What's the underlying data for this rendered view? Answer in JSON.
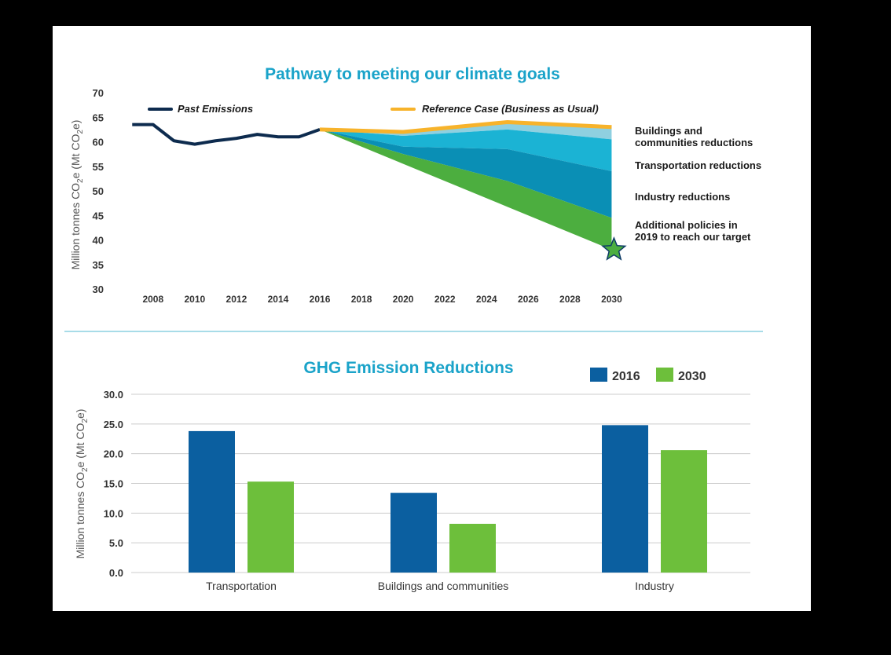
{
  "colors": {
    "title": "#1aa3c9",
    "past": "#0d2b4e",
    "reference": "#f7b32b",
    "buildings": "#8fd0e0",
    "transportation": "#1bb3d4",
    "industry": "#0a8fb5",
    "additional": "#4cae3f",
    "bar2016": "#0b5fa0",
    "bar2030": "#6dbf3b",
    "divider": "#a8dce8",
    "grid": "#cccccc",
    "star": "#4cae3f",
    "starStroke": "#0d3b66"
  },
  "chart_data": [
    {
      "type": "area",
      "title": "Pathway to meeting our climate goals",
      "ylabel_parts": [
        "Million tonnes CO",
        "2",
        "e (Mt CO",
        "2",
        "e)"
      ],
      "ylim": [
        30,
        70
      ],
      "yticks": [
        "70",
        "65",
        "60",
        "55",
        "50",
        "45",
        "40",
        "35",
        "30"
      ],
      "xlim": [
        2006.5,
        2030.7
      ],
      "xticks": [
        "2008",
        "2010",
        "2012",
        "2014",
        "2016",
        "2018",
        "2020",
        "2022",
        "2024",
        "2026",
        "2028",
        "2030"
      ],
      "legend": {
        "past": "Past Emissions",
        "reference": "Reference Case (Business as Usual)"
      },
      "past_emissions": {
        "x": [
          2007,
          2008,
          2009,
          2010,
          2011,
          2012,
          2013,
          2014,
          2015,
          2016
        ],
        "y": [
          63.5,
          63.5,
          60.2,
          59.5,
          60.2,
          60.7,
          61.5,
          61.0,
          61.0,
          62.5
        ]
      },
      "reference_case": {
        "x": [
          2016,
          2020,
          2025,
          2030
        ],
        "y": [
          62.5,
          62.0,
          64.0,
          63.0
        ]
      },
      "buildings_lower": {
        "x": [
          2016,
          2020,
          2025,
          2030
        ],
        "y": [
          62.5,
          61.2,
          62.5,
          60.5
        ]
      },
      "transportation_lower": {
        "x": [
          2016,
          2020,
          2025,
          2030
        ],
        "y": [
          62.5,
          59.0,
          58.5,
          54.0
        ]
      },
      "industry_lower": {
        "x": [
          2016,
          2020,
          2025,
          2030
        ],
        "y": [
          62.5,
          57.5,
          52.0,
          44.5
        ]
      },
      "target_line": {
        "x": [
          2016,
          2030
        ],
        "y": [
          62.5,
          38.0
        ]
      },
      "annotations": [
        {
          "name": "buildings",
          "lines": [
            "Buildings and",
            "communities reductions"
          ]
        },
        {
          "name": "transportation",
          "lines": [
            "Transportation reductions"
          ]
        },
        {
          "name": "industry",
          "lines": [
            "Industry reductions"
          ]
        },
        {
          "name": "additional",
          "lines": [
            "Additional policies in",
            "2019 to reach our target"
          ]
        }
      ],
      "target_marker": {
        "x": 2030,
        "y": 38.0
      }
    },
    {
      "type": "bar",
      "title": "GHG Emission Reductions",
      "ylabel_parts": [
        "Million tonnes CO",
        "2",
        "e (Mt CO",
        "2",
        "e)"
      ],
      "ylim": [
        0,
        30
      ],
      "yticks": [
        "30.0",
        "25.0",
        "20.0",
        "15.0",
        "10.0",
        "5.0",
        "0.0"
      ],
      "categories": [
        "Transportation",
        "Buildings and communities",
        "Industry"
      ],
      "series": [
        {
          "name": "2016",
          "values": [
            23.8,
            13.4,
            24.8
          ]
        },
        {
          "name": "2030",
          "values": [
            15.3,
            8.2,
            20.6
          ]
        }
      ],
      "legend_position": "top-right"
    }
  ]
}
